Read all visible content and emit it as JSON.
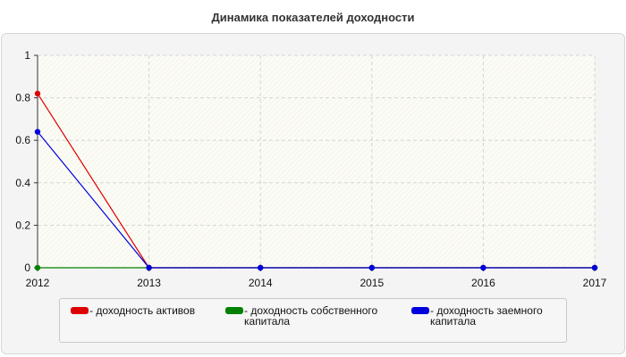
{
  "chart_data": {
    "type": "line",
    "title": "Динамика показателей доходности",
    "x": [
      "2012",
      "2013",
      "2014",
      "2015",
      "2016",
      "2017"
    ],
    "ylim": [
      0,
      1
    ],
    "yticks": [
      "0",
      "0.2",
      "0.4",
      "0.6",
      "0.8",
      "1"
    ],
    "grid": true,
    "legend_position": "bottom",
    "series": [
      {
        "name": "доходность активов",
        "color": "#dd0000",
        "values": [
          0.82,
          0,
          0,
          0,
          0,
          0
        ]
      },
      {
        "name": "доходность собственного капитала",
        "color": "#008000",
        "values": [
          0,
          0,
          0,
          0,
          0,
          0
        ]
      },
      {
        "name": "доходность заемного капитала",
        "color": "#0000dd",
        "values": [
          0.64,
          0,
          0,
          0,
          0,
          0
        ]
      }
    ]
  }
}
